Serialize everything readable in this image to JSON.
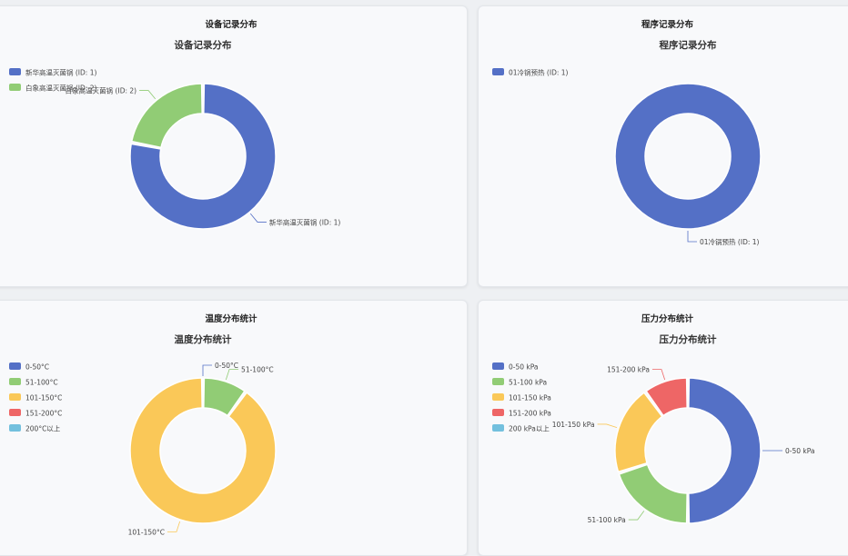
{
  "cards": [
    {
      "header": "设备记录分布"
    },
    {
      "header": "程序记录分布"
    },
    {
      "header": "温度分布统计"
    },
    {
      "header": "压力分布统计"
    }
  ],
  "chart_data": [
    {
      "type": "pie",
      "donut": true,
      "title": "设备记录分布",
      "legend_position": "top-left",
      "categories": [
        "新华高温灭菌锅 (ID: 1)",
        "白象高温灭菌锅 (ID: 2)"
      ],
      "values": [
        78,
        22
      ],
      "colors": [
        "#5470c6",
        "#91cc75"
      ],
      "slice_labels": [
        "新华高温灭菌锅 (ID: 1)",
        "白象高温灭菌锅 (ID: 2)"
      ]
    },
    {
      "type": "pie",
      "donut": true,
      "title": "程序记录分布",
      "legend_position": "top-left",
      "categories": [
        "01冷锅预热 (ID: 1)"
      ],
      "values": [
        100
      ],
      "colors": [
        "#5470c6"
      ],
      "slice_labels": [
        "01冷锅预热 (ID: 1)"
      ]
    },
    {
      "type": "pie",
      "donut": true,
      "title": "温度分布统计",
      "legend_position": "top-left",
      "categories": [
        "0-50°C",
        "51-100°C",
        "101-150°C",
        "151-200°C",
        "200°C以上"
      ],
      "values": [
        0,
        10,
        90,
        0,
        0
      ],
      "colors": [
        "#5470c6",
        "#91cc75",
        "#fac858",
        "#ee6666",
        "#73c0de"
      ],
      "slice_labels": [
        "0-50°C",
        "51-100°C",
        "101-150°C",
        "",
        ""
      ]
    },
    {
      "type": "pie",
      "donut": true,
      "title": "压力分布统计",
      "legend_position": "top-left",
      "categories": [
        "0-50 kPa",
        "51-100 kPa",
        "101-150 kPa",
        "151-200 kPa",
        "200 kPa以上"
      ],
      "values": [
        50,
        20,
        20,
        10,
        0
      ],
      "colors": [
        "#5470c6",
        "#91cc75",
        "#fac858",
        "#ee6666",
        "#73c0de"
      ],
      "slice_labels": [
        "0-50 kPa",
        "51-100 kPa",
        "101-150 kPa",
        "151-200 kPa",
        ""
      ]
    }
  ]
}
